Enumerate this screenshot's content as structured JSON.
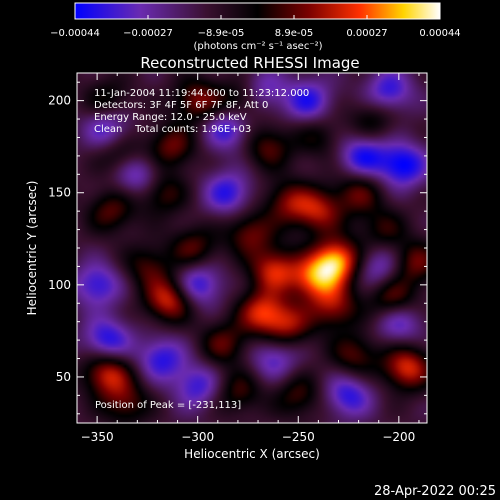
{
  "chart_data": {
    "type": "heatmap",
    "title": "Reconstructed RHESSI Image",
    "xlabel": "Heliocentric X (arcsec)",
    "ylabel": "Heliocentric Y (arcsec)",
    "xlim": [
      -360,
      -186
    ],
    "ylim": [
      25,
      215
    ],
    "x_ticks": [
      -350,
      -300,
      -250,
      -200
    ],
    "y_ticks": [
      50,
      100,
      150,
      200
    ],
    "colorbar": {
      "ticks": [
        "-0.00044",
        "-0.00027",
        "-8.9e-05",
        "8.9e-05",
        "0.00027",
        "0.00044"
      ],
      "range": [
        -0.00044,
        0.00044
      ],
      "unit_text": "(photons cm⁻² s⁻¹ asec⁻²)",
      "colors": [
        "#0000ff",
        "#6a2bb0",
        "#3a1030",
        "#000000",
        "#7a0000",
        "#ff3000",
        "#ffd400",
        "#ffffff"
      ]
    },
    "annotations": {
      "time": "11-Jan-2004 11:19:44.000 to 11:23:12.000",
      "detectors": "Detectors: 3F 4F 5F 6F 7F 8F, Att 0",
      "energy": "Energy Range: 12.0 - 25.0 keV",
      "clean": "Clean    Total counts: 1.96E+03",
      "peak": "Position of Peak = [-231,113]"
    },
    "peak": {
      "x": -231,
      "y": 113
    },
    "sources": [
      {
        "x": -231,
        "y": 113,
        "amp": 1.0
      },
      {
        "x": -242,
        "y": 103,
        "amp": 0.75
      },
      {
        "x": -262,
        "y": 108,
        "amp": 0.7
      },
      {
        "x": -268,
        "y": 85,
        "amp": 0.7
      },
      {
        "x": -255,
        "y": 78,
        "amp": 0.55
      },
      {
        "x": -232,
        "y": 88,
        "amp": 0.55
      },
      {
        "x": -240,
        "y": 140,
        "amp": 0.6
      },
      {
        "x": -220,
        "y": 150,
        "amp": 0.45
      },
      {
        "x": -274,
        "y": 128,
        "amp": 0.5
      },
      {
        "x": -255,
        "y": 145,
        "amp": 0.5
      },
      {
        "x": -265,
        "y": 175,
        "amp": 0.45
      },
      {
        "x": -278,
        "y": 200,
        "amp": 0.45
      },
      {
        "x": -300,
        "y": 200,
        "amp": 0.55
      },
      {
        "x": -313,
        "y": 175,
        "amp": 0.5
      },
      {
        "x": -318,
        "y": 150,
        "amp": 0.45
      },
      {
        "x": -302,
        "y": 120,
        "amp": 0.45
      },
      {
        "x": -314,
        "y": 92,
        "amp": 0.75
      },
      {
        "x": -325,
        "y": 110,
        "amp": 0.4
      },
      {
        "x": -343,
        "y": 140,
        "amp": 0.45
      },
      {
        "x": -338,
        "y": 170,
        "amp": 0.4
      },
      {
        "x": -345,
        "y": 200,
        "amp": 0.35
      },
      {
        "x": -345,
        "y": 52,
        "amp": 0.7
      },
      {
        "x": -287,
        "y": 68,
        "amp": 0.45
      },
      {
        "x": -280,
        "y": 42,
        "amp": 0.4
      },
      {
        "x": -222,
        "y": 62,
        "amp": 0.45
      },
      {
        "x": -203,
        "y": 92,
        "amp": 0.55
      },
      {
        "x": -196,
        "y": 55,
        "amp": 0.75
      },
      {
        "x": -192,
        "y": 112,
        "amp": 0.5
      },
      {
        "x": -208,
        "y": 130,
        "amp": 0.35
      },
      {
        "x": -213,
        "y": 190,
        "amp": 0.35
      },
      {
        "x": -240,
        "y": 180,
        "amp": 0.3
      },
      {
        "x": -336,
        "y": 36,
        "amp": 0.45
      },
      {
        "x": -250,
        "y": 40,
        "amp": 0.4
      },
      {
        "x": -345,
        "y": 70,
        "amp": -0.6
      },
      {
        "x": -330,
        "y": 160,
        "amp": -0.55
      },
      {
        "x": -300,
        "y": 100,
        "amp": -0.6
      },
      {
        "x": -285,
        "y": 150,
        "amp": -0.55
      },
      {
        "x": -285,
        "y": 185,
        "amp": -0.55
      },
      {
        "x": -245,
        "y": 200,
        "amp": -0.55
      },
      {
        "x": -218,
        "y": 170,
        "amp": -0.6
      },
      {
        "x": -198,
        "y": 165,
        "amp": -0.7
      },
      {
        "x": -205,
        "y": 205,
        "amp": -0.55
      },
      {
        "x": -210,
        "y": 110,
        "amp": -0.45
      },
      {
        "x": -225,
        "y": 40,
        "amp": -0.55
      },
      {
        "x": -300,
        "y": 45,
        "amp": -0.5
      },
      {
        "x": -318,
        "y": 60,
        "amp": -0.55
      },
      {
        "x": -350,
        "y": 100,
        "amp": -0.55
      },
      {
        "x": -200,
        "y": 80,
        "amp": -0.5
      },
      {
        "x": -262,
        "y": 60,
        "amp": -0.45
      },
      {
        "x": -345,
        "y": 185,
        "amp": -0.5
      },
      {
        "x": -268,
        "y": 205,
        "amp": -0.45
      }
    ]
  },
  "footer": {
    "timestamp": "28-Apr-2022 00:25"
  }
}
